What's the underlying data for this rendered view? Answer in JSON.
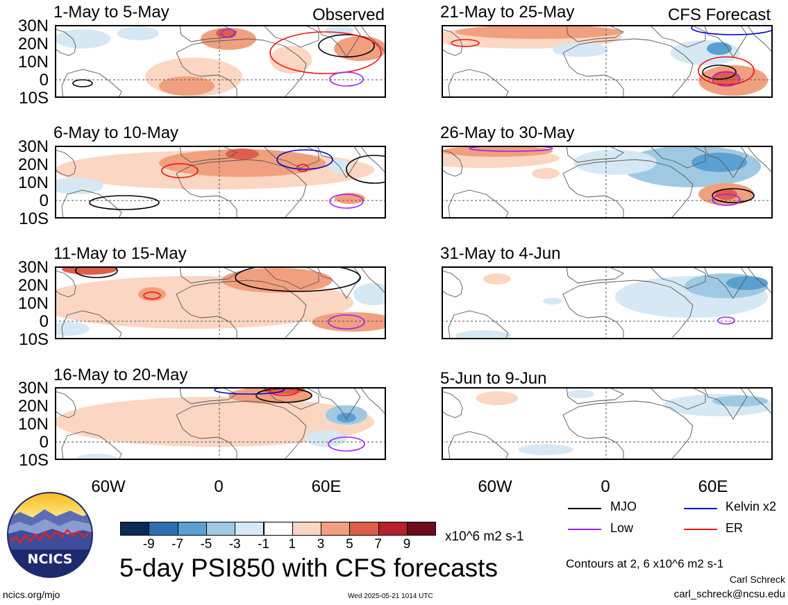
{
  "panels": [
    {
      "title": "1-May to 5-May",
      "flag": "Observed"
    },
    {
      "title": "6-May to 10-May",
      "flag": ""
    },
    {
      "title": "11-May to 15-May",
      "flag": ""
    },
    {
      "title": "16-May to 20-May",
      "flag": ""
    },
    {
      "title": "21-May to 25-May",
      "flag": "CFS Forecast"
    },
    {
      "title": "26-May to 30-May",
      "flag": ""
    },
    {
      "title": "31-May to 4-Jun",
      "flag": ""
    },
    {
      "title": "5-Jun to 9-Jun",
      "flag": ""
    }
  ],
  "lat_labels": [
    "30N",
    "20N",
    "10N",
    "0",
    "10S"
  ],
  "lon_labels": [
    "60W",
    "0",
    "60E"
  ],
  "colorbar": {
    "labels": [
      "-9",
      "-7",
      "-5",
      "-3",
      "-1",
      "1",
      "3",
      "5",
      "7",
      "9"
    ],
    "colors": [
      "#0b2a55",
      "#2e6fb3",
      "#5aa0d0",
      "#9fc9e3",
      "#d6e8f3",
      "#ffffff",
      "#fbd6c2",
      "#f0a07e",
      "#dd5f4b",
      "#b8202c",
      "#6e0c1e"
    ],
    "units": "x10^6 m2 s-1"
  },
  "legend": {
    "mjo": {
      "label": "MJO",
      "color": "#000000"
    },
    "kelvin": {
      "label": "Kelvin x2",
      "color": "#0000dd"
    },
    "low": {
      "label": "Low",
      "color": "#a020f0"
    },
    "er": {
      "label": "ER",
      "color": "#ee1111"
    }
  },
  "main_title": "5-day PSI850 with CFS forecasts",
  "contours_note": "Contours at 2, 6 x10^6 m2 s-1",
  "author": "Carl Schreck",
  "email": "carl_schreck@ncsu.edu",
  "url": "ncics.org/mjo",
  "timestamp": "Wed 2025-05-21 1014 UTC",
  "logo_text": "NCICS"
}
